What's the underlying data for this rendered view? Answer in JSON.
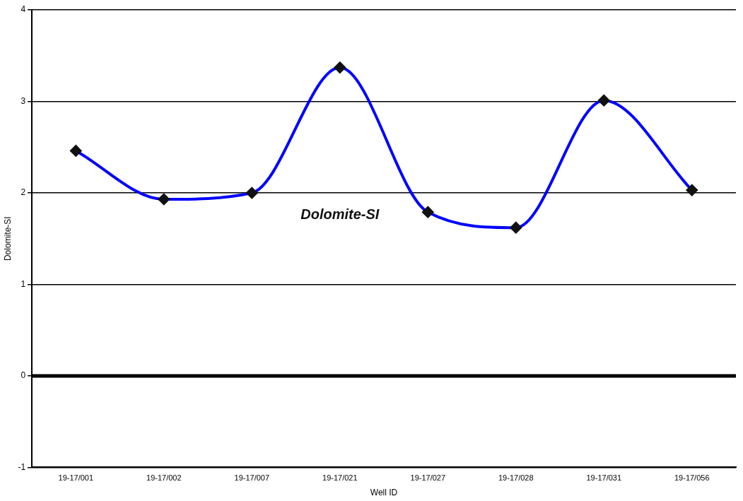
{
  "chart_data": {
    "type": "line",
    "xlabel": "Well ID",
    "ylabel": "Dolomite-SI",
    "categories": [
      "19-17/001",
      "19-17/002",
      "19-17/007",
      "19-17/021",
      "19-17/027",
      "19-17/028",
      "19-17/031",
      "19-17/056"
    ],
    "series": [
      {
        "name": "Dolomite-SI",
        "color": "#0000ff",
        "values": [
          2.46,
          1.93,
          2.0,
          3.37,
          1.79,
          1.62,
          3.01,
          2.03
        ]
      }
    ],
    "ylim": [
      -1,
      4
    ],
    "yticks": [
      -1,
      0,
      1,
      2,
      3,
      4
    ],
    "grid": "y",
    "legend": false,
    "marker": "diamond",
    "ref_lines": [
      {
        "axis": "y",
        "value": 0,
        "color": "#000000"
      }
    ]
  }
}
